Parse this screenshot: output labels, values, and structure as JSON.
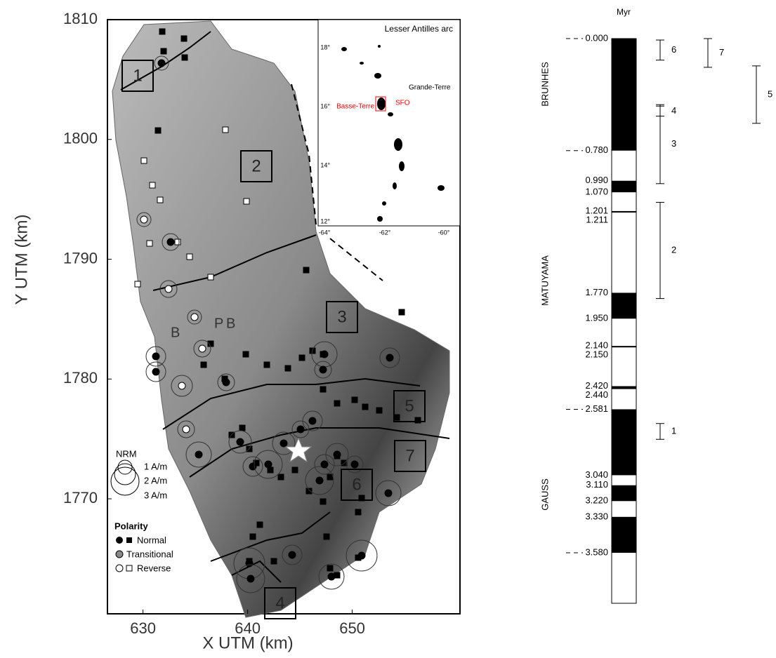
{
  "map": {
    "x_label": "X UTM (km)",
    "y_label": "Y UTM (km)",
    "xlim": [
      626.6,
      660.3
    ],
    "ylim": [
      1760.4,
      1810
    ],
    "xticks": [
      630,
      640,
      650
    ],
    "yticks": [
      1770,
      1780,
      1790,
      1800,
      1810
    ],
    "zones": [
      "1",
      "2",
      "3",
      "4",
      "5",
      "6",
      "7"
    ],
    "letters": [
      "B",
      "P",
      "B"
    ],
    "inset": {
      "title": "Lesser Antilles arc",
      "grande_terre": "Grande-Terre",
      "basse_terre": "Basse-Terre",
      "sfo": "SFO",
      "lat_ticks": [
        "18°",
        "16°",
        "14°",
        "12°"
      ],
      "lon_ticks": [
        "-64°",
        "-62°",
        "-60°"
      ]
    },
    "legend": {
      "nrm_title": "NRM",
      "nrm": [
        "1 A/m",
        "2 A/m",
        "3 A/m"
      ],
      "polarity_title": "Polarity",
      "polarity": [
        "Normal",
        "Transitional",
        "Reverse"
      ]
    }
  },
  "column": {
    "unit": "Myr",
    "chrons": [
      "BRUNHES",
      "MATUYAMA",
      "GAUSS"
    ],
    "ages": [
      {
        "value": 0,
        "label": "0.000"
      },
      {
        "value": 0.78,
        "label": "0.780"
      },
      {
        "value": 0.99,
        "label": "0.990"
      },
      {
        "value": 1.07,
        "label": "1.070"
      },
      {
        "value": 1.201,
        "label": "1.201"
      },
      {
        "value": 1.211,
        "label": "1.211"
      },
      {
        "value": 1.77,
        "label": "1.770"
      },
      {
        "value": 1.95,
        "label": "1.950"
      },
      {
        "value": 2.14,
        "label": "2.140"
      },
      {
        "value": 2.15,
        "label": "2.150"
      },
      {
        "value": 2.42,
        "label": "2.420"
      },
      {
        "value": 2.44,
        "label": "2.440"
      },
      {
        "value": 2.581,
        "label": "2.581"
      },
      {
        "value": 3.04,
        "label": "3.040"
      },
      {
        "value": 3.11,
        "label": "3.110"
      },
      {
        "value": 3.22,
        "label": "3.220"
      },
      {
        "value": 3.33,
        "label": "3.330"
      },
      {
        "value": 3.58,
        "label": "3.580"
      }
    ],
    "brackets": [
      {
        "label": "6",
        "start": 0.01,
        "end": 0.15
      },
      {
        "label": "7",
        "start": 0.0,
        "end": 0.2
      },
      {
        "label": "5",
        "start": 0.19,
        "end": 0.59
      },
      {
        "label": "4",
        "start": 0.47,
        "end": 0.54
      },
      {
        "label": "3",
        "start": 0.46,
        "end": 1.01
      },
      {
        "label": "2",
        "start": 1.14,
        "end": 1.81
      },
      {
        "label": "1",
        "start": 2.68,
        "end": 2.79
      }
    ]
  }
}
